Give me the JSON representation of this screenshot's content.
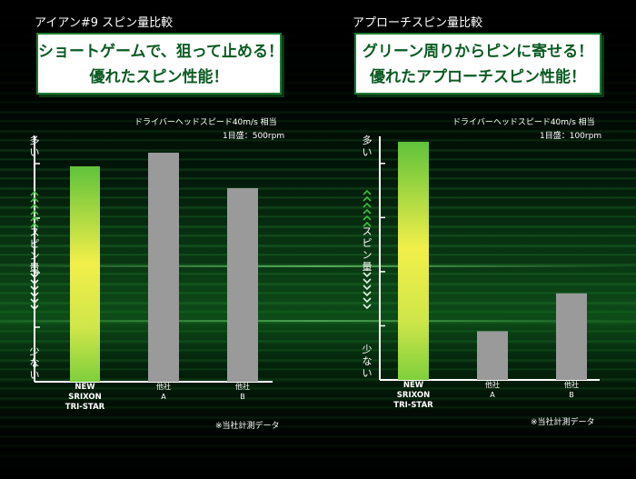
{
  "panels": [
    {
      "title": "アイアン#9 スピン量比較",
      "headline": [
        "ショートゲームで、狙って止める！",
        "優れたスピン性能！"
      ],
      "condition": "ドライバーヘッドスピード40m/s 相当",
      "scale_note": "1目盛：500rpm",
      "footnote": "※当社計測データ",
      "axis_top": "多い",
      "axis_mid": "スピン量",
      "axis_bottom": "少ない"
    },
    {
      "title": "アプローチスピン量比較",
      "headline": [
        "グリーン周りからピンに寄せる！",
        "優れたアプローチスピン性能！"
      ],
      "condition": "ドライバーヘッドスピード40m/s 相当",
      "scale_note": "1目盛：100rpm",
      "footnote": "※当社計測データ",
      "axis_top": "多い",
      "axis_mid": "スピン量",
      "axis_bottom": "少ない"
    }
  ],
  "chart_data": [
    {
      "type": "bar",
      "title": "アイアン#9 スピン量比較",
      "categories": [
        "NEW SRIXON TRI-STAR",
        "他社 A",
        "他社 B"
      ],
      "category_lines": [
        [
          "NEW",
          "SRIXON",
          "TRI-STAR"
        ],
        [
          "他社",
          "A"
        ],
        [
          "他社",
          "B"
        ]
      ],
      "values": [
        3.95,
        4.2,
        3.55
      ],
      "ylim": [
        0,
        4.5
      ],
      "tick_step": 1,
      "ylabel": "スピン量",
      "y_ticks_labeled": false,
      "colors": [
        "#9ad23a",
        "#9a9a9a",
        "#9a9a9a"
      ]
    },
    {
      "type": "bar",
      "title": "アプローチスピン量比較",
      "categories": [
        "NEW SRIXON TRI-STAR",
        "他社 A",
        "他社 B"
      ],
      "category_lines": [
        [
          "NEW",
          "SRIXON",
          "TRI-STAR"
        ],
        [
          "他社",
          "A"
        ],
        [
          "他社",
          "B"
        ]
      ],
      "values": [
        4.4,
        0.9,
        1.6
      ],
      "ylim": [
        0,
        4.5
      ],
      "tick_step": 1,
      "ylabel": "スピン量",
      "y_ticks_labeled": false,
      "colors": [
        "#9ad23a",
        "#9a9a9a",
        "#9a9a9a"
      ]
    }
  ]
}
